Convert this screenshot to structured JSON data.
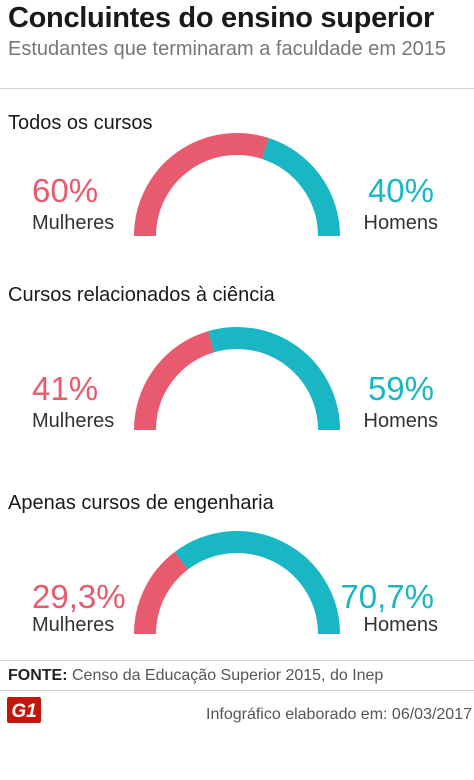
{
  "header": {
    "title": "Concluintes do ensino superior",
    "subtitle": "Estudantes que terminaram a faculdade em 2015"
  },
  "colors": {
    "women": "#e85a6e",
    "men": "#19b6c3"
  },
  "chart_data": [
    {
      "type": "pie",
      "title": "Todos os cursos",
      "series": [
        {
          "name": "Mulheres",
          "value": 60,
          "value_label": "60%"
        },
        {
          "name": "Homens",
          "value": 40,
          "value_label": "40%"
        }
      ]
    },
    {
      "type": "pie",
      "title": "Cursos relacionados à ciência",
      "series": [
        {
          "name": "Mulheres",
          "value": 41,
          "value_label": "41%"
        },
        {
          "name": "Homens",
          "value": 59,
          "value_label": "59%"
        }
      ]
    },
    {
      "type": "pie",
      "title": "Apenas cursos de engenharia",
      "series": [
        {
          "name": "Mulheres",
          "value": 29.3,
          "value_label": "29,3%"
        },
        {
          "name": "Homens",
          "value": 70.7,
          "value_label": "70,7%"
        }
      ]
    }
  ],
  "footer": {
    "source_label": "FONTE:",
    "source_text": " Censo da Educação Superior 2015, do Inep",
    "logo_text": "G1",
    "credit": "Infográfico elaborado em: 06/03/2017"
  }
}
